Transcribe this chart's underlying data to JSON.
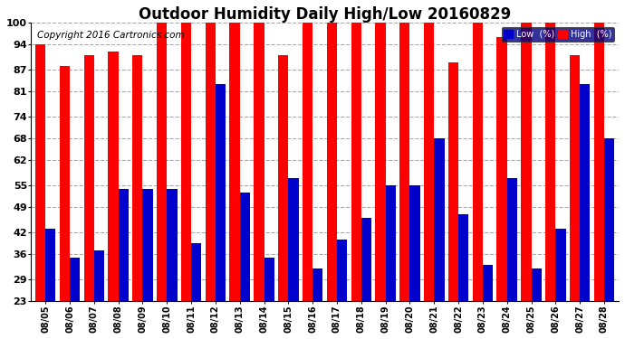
{
  "title": "Outdoor Humidity Daily High/Low 20160829",
  "copyright": "Copyright 2016 Cartronics.com",
  "dates": [
    "08/05",
    "08/06",
    "08/07",
    "08/08",
    "08/09",
    "08/10",
    "08/11",
    "08/12",
    "08/13",
    "08/14",
    "08/15",
    "08/16",
    "08/17",
    "08/18",
    "08/19",
    "08/20",
    "08/21",
    "08/22",
    "08/23",
    "08/24",
    "08/25",
    "08/26",
    "08/27",
    "08/28"
  ],
  "high": [
    94,
    88,
    91,
    92,
    91,
    100,
    100,
    100,
    100,
    100,
    91,
    100,
    100,
    100,
    100,
    100,
    100,
    89,
    100,
    96,
    100,
    100,
    91,
    100
  ],
  "low": [
    43,
    35,
    37,
    54,
    54,
    54,
    39,
    83,
    53,
    35,
    57,
    32,
    40,
    46,
    55,
    55,
    68,
    47,
    33,
    57,
    32,
    43,
    83,
    68
  ],
  "high_color": "#ff0000",
  "low_color": "#0000cc",
  "bg_color": "#ffffff",
  "grid_color": "#aaaaaa",
  "ymin": 23,
  "ymax": 100,
  "yticks": [
    23,
    29,
    36,
    42,
    49,
    55,
    62,
    68,
    74,
    81,
    87,
    94,
    100
  ],
  "title_fontsize": 12,
  "copyright_fontsize": 7.5,
  "legend_low_label": "Low  (%)",
  "legend_high_label": "High  (%)"
}
